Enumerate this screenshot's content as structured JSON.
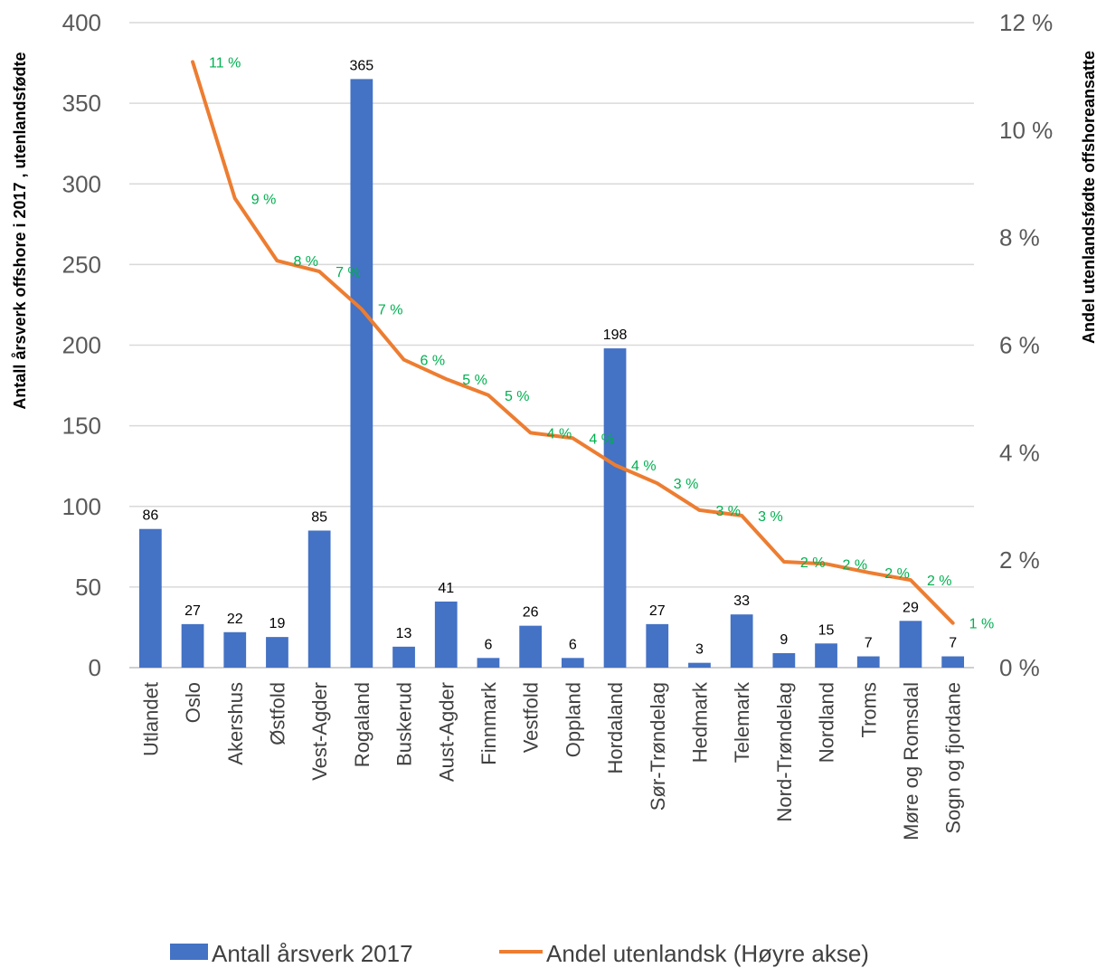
{
  "chart_data": {
    "type": "bar",
    "categories": [
      "Utlandet",
      "Oslo",
      "Akershus",
      "Østfold",
      "Vest-Agder",
      "Rogaland",
      "Buskerud",
      "Aust-Agder",
      "Finnmark",
      "Vestfold",
      "Oppland",
      "Hordaland",
      "Sør-Trøndelag",
      "Hedmark",
      "Telemark",
      "Nord-Trøndelag",
      "Nordland",
      "Troms",
      "Møre og Romsdal",
      "Sogn og fjordane"
    ],
    "series": [
      {
        "name": "Antall årsverk 2017",
        "type": "bar",
        "axis": "left",
        "color": "#4472C4",
        "values": [
          86,
          27,
          22,
          19,
          85,
          365,
          13,
          41,
          6,
          26,
          6,
          198,
          27,
          3,
          33,
          9,
          15,
          7,
          29,
          7
        ],
        "labels": [
          "86",
          "27",
          "22",
          "19",
          "85",
          "365",
          "13",
          "41",
          "6",
          "26",
          "6",
          "198",
          "27",
          "3",
          "33",
          "9",
          "15",
          "7",
          "29",
          "7"
        ]
      },
      {
        "name": "Andel utenlandsk (Høyre akse)",
        "type": "line",
        "axis": "right",
        "color": "#ED7D31",
        "values": [
          null,
          0.1127,
          0.0873,
          0.0757,
          0.0737,
          0.0667,
          0.0573,
          0.0537,
          0.0507,
          0.0437,
          0.0427,
          0.0377,
          0.0343,
          0.0293,
          0.0283,
          0.0197,
          0.0193,
          0.0177,
          0.0163,
          0.0083
        ],
        "labels": [
          null,
          "11 %",
          "9 %",
          "8 %",
          "7 %",
          "7 %",
          "6 %",
          "5 %",
          "5 %",
          "4 %",
          "4 %",
          "4 %",
          "3 %",
          "3 %",
          "3 %",
          "2 %",
          "2 %",
          "2 %",
          "2 %",
          "1 %"
        ]
      }
    ],
    "ylabel": "Antall årsverk offshore i 2017 , utenlandsfødte",
    "y2label": "Andel utenlandsfødte offshoreansatte",
    "ylim": [
      0,
      400
    ],
    "y2lim": [
      0,
      0.12
    ],
    "yticks": [
      "0",
      "50",
      "100",
      "150",
      "200",
      "250",
      "300",
      "350",
      "400"
    ],
    "y2ticks": [
      "0 %",
      "2 %",
      "4 %",
      "6 %",
      "8 %",
      "10 %",
      "12 %"
    ],
    "grid": true,
    "legend_position": "bottom",
    "label_color": "#00B050"
  }
}
